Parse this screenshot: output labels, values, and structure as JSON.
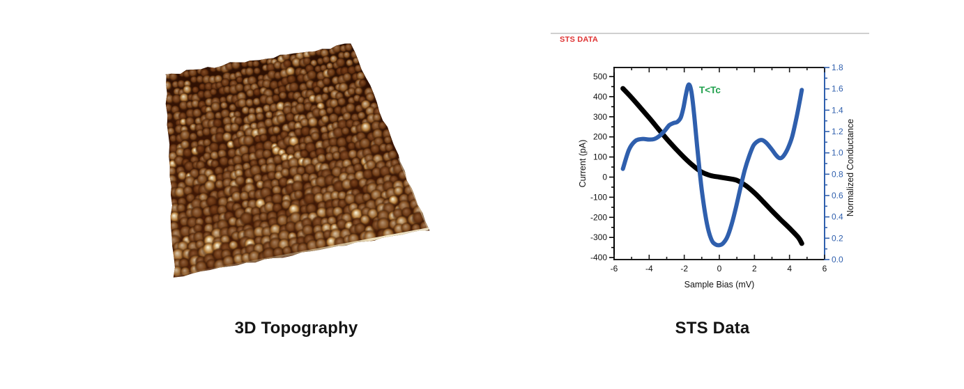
{
  "page": {
    "background": "#ffffff"
  },
  "left_panel": {
    "caption": "3D Topography",
    "topography": {
      "description": "3D STM topography of atomic-scale bumpy surface",
      "palette": {
        "base_dark": "#2a0e02",
        "base_mid": "#571f06",
        "bump_dark": "#4a1a04",
        "bump_mid": "#b97f37",
        "bump_hi_low": "#6d3009",
        "bump_hi_high": "#f6edd0",
        "rim_light": "#f2e6bc"
      }
    }
  },
  "right_panel": {
    "tag": "STS DATA",
    "tag_color": "#df3333",
    "divider_color": "#cfcfcf",
    "caption": "STS Data"
  },
  "chart_data": {
    "type": "line",
    "xlabel": "Sample Bias (mV)",
    "ylabel_left": "Current (pA)",
    "ylabel_right": "Normalized Conductance",
    "xlim": [
      -6,
      6
    ],
    "ylim_left": [
      -410,
      545
    ],
    "ylim_right": [
      0,
      1.8
    ],
    "xticks": [
      -6,
      -4,
      -2,
      0,
      2,
      4,
      6
    ],
    "yticks_left": [
      500,
      400,
      300,
      200,
      100,
      0,
      -100,
      -200,
      -300,
      -400
    ],
    "yticks_right": [
      {
        "v": 1.8,
        "label": "1.8"
      },
      {
        "v": 1.6,
        "label": "1.6"
      },
      {
        "v": 1.4,
        "label": "1.4"
      },
      {
        "v": 1.2,
        "label": "1.2"
      },
      {
        "v": 1.0,
        "label": "1.0"
      },
      {
        "v": 0.8,
        "label": "0.8"
      },
      {
        "v": 0.6,
        "label": "0.6"
      },
      {
        "v": 0.4,
        "label": "0.4"
      },
      {
        "v": 0.2,
        "label": "0.2"
      },
      {
        "v": 0.0,
        "label": "0.0"
      }
    ],
    "annotation": {
      "text": "T<Tc",
      "x": -1.15,
      "y": 1.56,
      "color": "#1fa04c"
    },
    "axis_colors": {
      "left": "#000000",
      "right": "#2f5fad",
      "frame": "#1a1a1a"
    },
    "series": [
      {
        "name": "Current",
        "axis": "left",
        "color": "#000000",
        "width": 7,
        "x": [
          -5.5,
          -5.0,
          -4.5,
          -4.0,
          -3.5,
          -3.0,
          -2.5,
          -2.0,
          -1.5,
          -1.0,
          -0.5,
          0.0,
          0.5,
          1.0,
          1.5,
          2.0,
          2.5,
          3.0,
          3.5,
          4.0,
          4.5,
          4.7
        ],
        "y": [
          441,
          395,
          345,
          295,
          242,
          190,
          142,
          97,
          57,
          25,
          8,
          0,
          -7,
          -16,
          -42,
          -78,
          -122,
          -168,
          -212,
          -254,
          -300,
          -330
        ]
      },
      {
        "name": "Normalized Conductance",
        "axis": "right",
        "color": "#2f5fad",
        "width": 6,
        "x": [
          -5.5,
          -5.15,
          -4.8,
          -4.4,
          -4.0,
          -3.7,
          -3.4,
          -3.1,
          -2.85,
          -2.6,
          -2.4,
          -2.2,
          -2.05,
          -1.9,
          -1.75,
          -1.6,
          -1.45,
          -1.3,
          -1.15,
          -1.0,
          -0.8,
          -0.6,
          -0.4,
          -0.2,
          0.0,
          0.2,
          0.45,
          0.7,
          0.95,
          1.2,
          1.45,
          1.7,
          1.95,
          2.2,
          2.45,
          2.7,
          3.0,
          3.25,
          3.45,
          3.65,
          3.9,
          4.15,
          4.4,
          4.6,
          4.7
        ],
        "y": [
          0.85,
          1.03,
          1.11,
          1.13,
          1.125,
          1.13,
          1.16,
          1.21,
          1.26,
          1.28,
          1.29,
          1.33,
          1.42,
          1.55,
          1.64,
          1.58,
          1.38,
          1.12,
          0.87,
          0.65,
          0.42,
          0.26,
          0.17,
          0.14,
          0.135,
          0.15,
          0.21,
          0.33,
          0.49,
          0.67,
          0.84,
          0.97,
          1.07,
          1.11,
          1.12,
          1.09,
          1.03,
          0.975,
          0.95,
          0.97,
          1.04,
          1.15,
          1.33,
          1.5,
          1.59
        ]
      }
    ]
  }
}
